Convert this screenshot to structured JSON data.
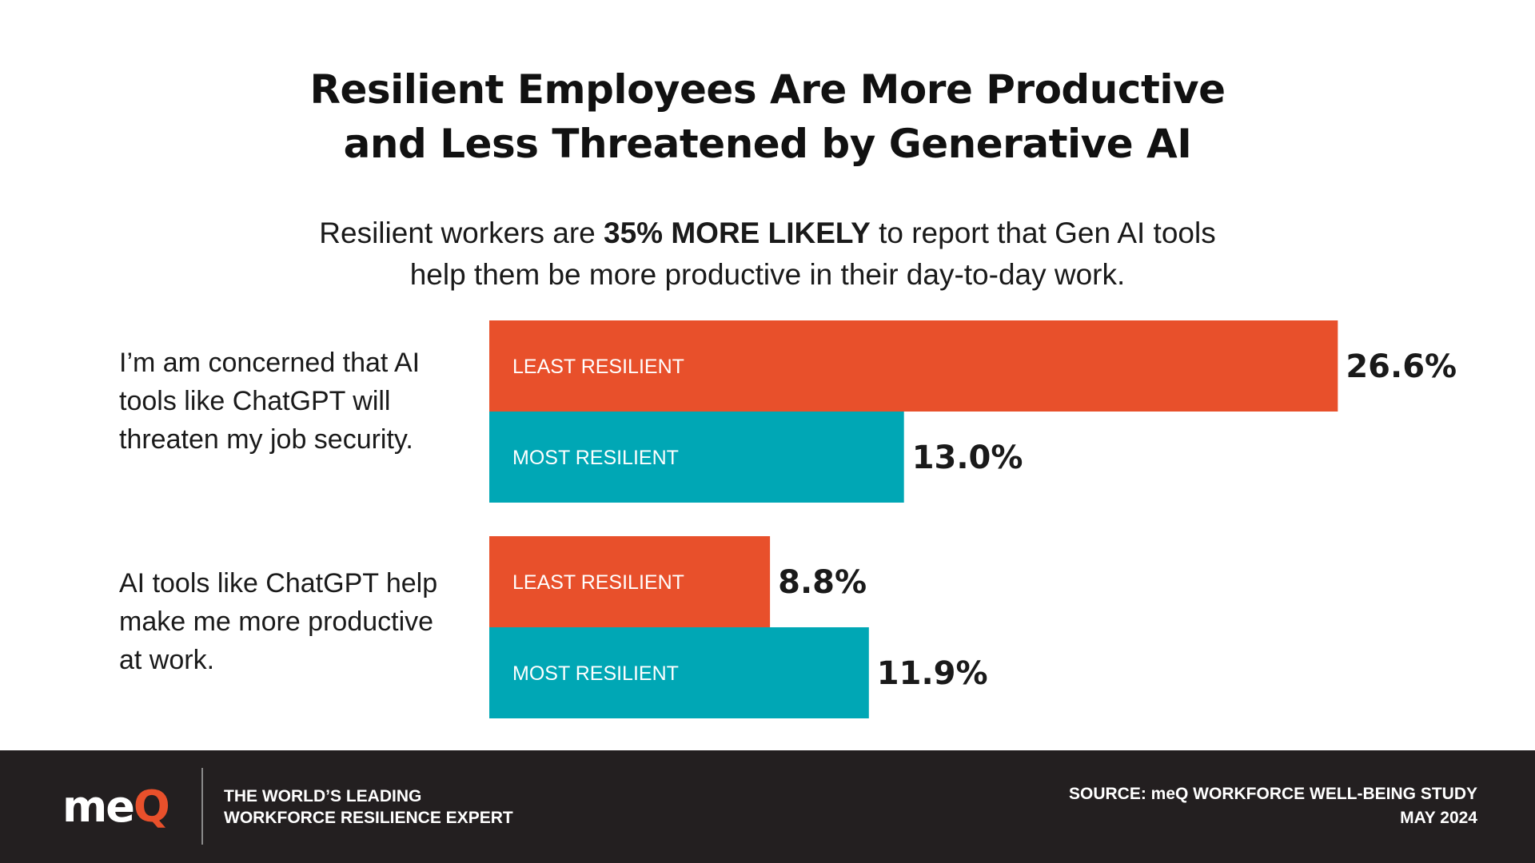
{
  "title": {
    "line1": "Resilient Employees Are More Productive",
    "line2": "and Less Threatened by Generative AI"
  },
  "subtitle": {
    "line1_pre": "Resilient workers are ",
    "line1_bold": "35% MORE LIKELY",
    "line1_post": " to report that Gen AI tools",
    "line2": "help them be more productive in their day-to-day work."
  },
  "colors": {
    "least_resilient": "#e8502b",
    "most_resilient": "#00a7b5",
    "footer_bg": "#231f20",
    "logo_accent": "#e8502b"
  },
  "chart_data": {
    "type": "bar",
    "orientation": "horizontal",
    "title": "Resilient Employees Are More Productive and Less Threatened by Generative AI",
    "categories": [
      "I’m am concerned that AI tools like ChatGPT will threaten my job security.",
      "AI tools like ChatGPT help make me more productive at work."
    ],
    "series": [
      {
        "bar_labels": [
          "LEAST  RESILIENT",
          "LEAST RESILIENT"
        ],
        "values": [
          26.6,
          8.8
        ],
        "value_labels": [
          "26.6%",
          "8.8%"
        ],
        "color": "#e8502b"
      },
      {
        "bar_labels": [
          "MOST RESILIENT",
          "MOST RESILIENT"
        ],
        "values": [
          13.0,
          11.9
        ],
        "value_labels": [
          "13.0%",
          "11.9%"
        ],
        "color": "#00a7b5"
      }
    ],
    "grid": false,
    "axes_visible": false
  },
  "footer": {
    "logo_text": "me",
    "logo_accent_text": "Q",
    "tagline_line1": "THE WORLD’S LEADING",
    "tagline_line2": "WORKFORCE RESILIENCE EXPERT",
    "source_line1": "SOURCE: meQ WORKFORCE WELL-BEING STUDY",
    "source_line2": "MAY 2024"
  }
}
